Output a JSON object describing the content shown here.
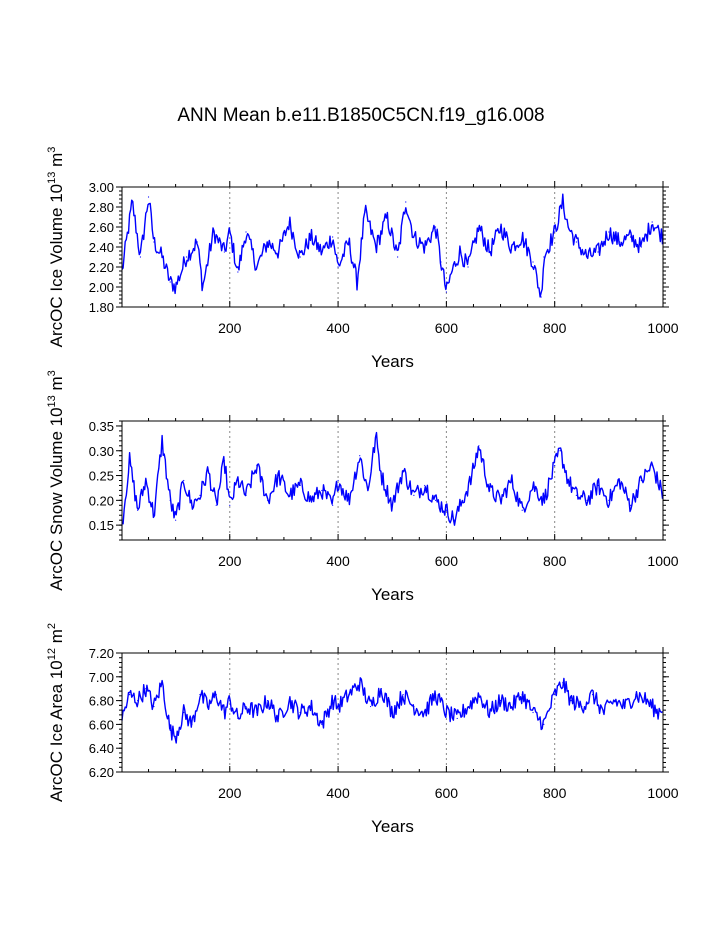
{
  "title": "ANN Mean b.e11.B1850C5CN.f19_g16.008",
  "colors": {
    "line": "#0000ff",
    "axis": "#000000",
    "refline": "#888888"
  },
  "chart_data": [
    {
      "type": "line",
      "name": "ice-volume",
      "ylabel": "ArcOC Ice Volume 10^13 m^3",
      "xlabel": "Years",
      "xlim": [
        1,
        1000
      ],
      "ylim": [
        1.8,
        3.0
      ],
      "xticks": [
        200,
        400,
        600,
        800,
        1000
      ],
      "xtick_labels": [
        "200",
        "400",
        "600",
        "800",
        "1000"
      ],
      "yticks": [
        1.8,
        2.0,
        2.2,
        2.4,
        2.6,
        2.8,
        3.0
      ],
      "ytick_labels": [
        "1.80",
        "2.00",
        "2.20",
        "2.40",
        "2.60",
        "2.80",
        "3.00"
      ],
      "ref_lines_x": [
        200,
        400,
        600,
        800
      ],
      "series": [
        {
          "name": "ArcOC Ice Volume",
          "x": [
            1,
            20,
            35,
            50,
            60,
            75,
            90,
            100,
            120,
            140,
            150,
            170,
            190,
            200,
            215,
            230,
            250,
            270,
            290,
            310,
            330,
            350,
            370,
            390,
            400,
            420,
            435,
            450,
            470,
            490,
            510,
            525,
            540,
            560,
            580,
            590,
            600,
            610,
            625,
            640,
            660,
            680,
            700,
            720,
            740,
            760,
            775,
            780,
            800,
            815,
            825,
            840,
            860,
            880,
            900,
            920,
            940,
            960,
            980,
            1000
          ],
          "y": [
            2.15,
            2.85,
            2.3,
            2.9,
            2.45,
            2.3,
            2.05,
            2.0,
            2.3,
            2.45,
            2.0,
            2.55,
            2.35,
            2.55,
            2.15,
            2.55,
            2.2,
            2.45,
            2.35,
            2.65,
            2.3,
            2.5,
            2.35,
            2.5,
            2.2,
            2.45,
            2.05,
            2.75,
            2.4,
            2.7,
            2.3,
            2.85,
            2.5,
            2.4,
            2.6,
            2.25,
            1.95,
            2.15,
            2.35,
            2.2,
            2.6,
            2.35,
            2.6,
            2.4,
            2.5,
            2.25,
            1.9,
            2.3,
            2.55,
            2.85,
            2.6,
            2.45,
            2.3,
            2.35,
            2.55,
            2.45,
            2.5,
            2.4,
            2.65,
            2.5
          ]
        }
      ]
    },
    {
      "type": "line",
      "name": "snow-volume",
      "ylabel": "ArcOC Snow Volume 10^13 m^3",
      "xlabel": "Years",
      "xlim": [
        1,
        1000
      ],
      "ylim": [
        0.12,
        0.36
      ],
      "xticks": [
        200,
        400,
        600,
        800,
        1000
      ],
      "xtick_labels": [
        "200",
        "400",
        "600",
        "800",
        "1000"
      ],
      "yticks": [
        0.15,
        0.2,
        0.25,
        0.3,
        0.35
      ],
      "ytick_labels": [
        "0.15",
        "0.20",
        "0.25",
        "0.30",
        "0.35"
      ],
      "ref_lines_x": [
        200,
        400,
        600,
        800
      ],
      "series": [
        {
          "name": "ArcOC Snow Volume",
          "x": [
            1,
            15,
            30,
            45,
            60,
            75,
            90,
            100,
            115,
            130,
            145,
            160,
            175,
            190,
            200,
            215,
            230,
            250,
            270,
            290,
            310,
            330,
            350,
            370,
            390,
            400,
            420,
            440,
            455,
            470,
            480,
            500,
            520,
            540,
            560,
            580,
            600,
            615,
            630,
            645,
            660,
            680,
            700,
            720,
            740,
            760,
            780,
            800,
            810,
            825,
            840,
            860,
            880,
            900,
            920,
            940,
            960,
            980,
            1000
          ],
          "y": [
            0.15,
            0.28,
            0.18,
            0.24,
            0.17,
            0.32,
            0.2,
            0.16,
            0.24,
            0.19,
            0.21,
            0.26,
            0.19,
            0.28,
            0.19,
            0.24,
            0.21,
            0.27,
            0.2,
            0.25,
            0.21,
            0.23,
            0.2,
            0.22,
            0.19,
            0.24,
            0.2,
            0.29,
            0.22,
            0.33,
            0.25,
            0.19,
            0.26,
            0.21,
            0.23,
            0.2,
            0.18,
            0.16,
            0.2,
            0.24,
            0.31,
            0.22,
            0.2,
            0.24,
            0.18,
            0.23,
            0.2,
            0.27,
            0.3,
            0.24,
            0.21,
            0.2,
            0.23,
            0.2,
            0.24,
            0.19,
            0.24,
            0.27,
            0.21
          ]
        }
      ]
    },
    {
      "type": "line",
      "name": "ice-area",
      "ylabel": "ArcOC Ice Area 10^12 m^2",
      "xlabel": "Years",
      "xlim": [
        1,
        1000
      ],
      "ylim": [
        6.2,
        7.2
      ],
      "xticks": [
        200,
        400,
        600,
        800,
        1000
      ],
      "xtick_labels": [
        "200",
        "400",
        "600",
        "800",
        "1000"
      ],
      "yticks": [
        6.2,
        6.4,
        6.6,
        6.8,
        7.0,
        7.2
      ],
      "ytick_labels": [
        "6.20",
        "6.40",
        "6.60",
        "6.80",
        "7.00",
        "7.20"
      ],
      "ref_lines_x": [
        200,
        400,
        600,
        800
      ],
      "series": [
        {
          "name": "ArcOC Ice Area",
          "x": [
            1,
            15,
            30,
            45,
            60,
            75,
            90,
            100,
            115,
            130,
            145,
            160,
            175,
            190,
            200,
            215,
            230,
            250,
            270,
            290,
            310,
            330,
            350,
            370,
            390,
            400,
            420,
            440,
            460,
            480,
            500,
            520,
            540,
            560,
            580,
            600,
            620,
            640,
            660,
            680,
            700,
            720,
            740,
            760,
            780,
            800,
            815,
            830,
            850,
            870,
            890,
            910,
            930,
            950,
            970,
            990,
            1000
          ],
          "y": [
            6.65,
            6.85,
            6.8,
            6.9,
            6.75,
            6.95,
            6.55,
            6.5,
            6.7,
            6.6,
            6.85,
            6.75,
            6.85,
            6.7,
            6.8,
            6.65,
            6.75,
            6.7,
            6.8,
            6.65,
            6.8,
            6.7,
            6.75,
            6.6,
            6.8,
            6.75,
            6.85,
            6.95,
            6.75,
            6.9,
            6.7,
            6.85,
            6.75,
            6.7,
            6.85,
            6.7,
            6.65,
            6.75,
            6.85,
            6.7,
            6.8,
            6.75,
            6.85,
            6.7,
            6.6,
            6.85,
            6.95,
            6.8,
            6.75,
            6.85,
            6.7,
            6.8,
            6.75,
            6.85,
            6.8,
            6.7,
            6.75
          ]
        }
      ]
    }
  ]
}
